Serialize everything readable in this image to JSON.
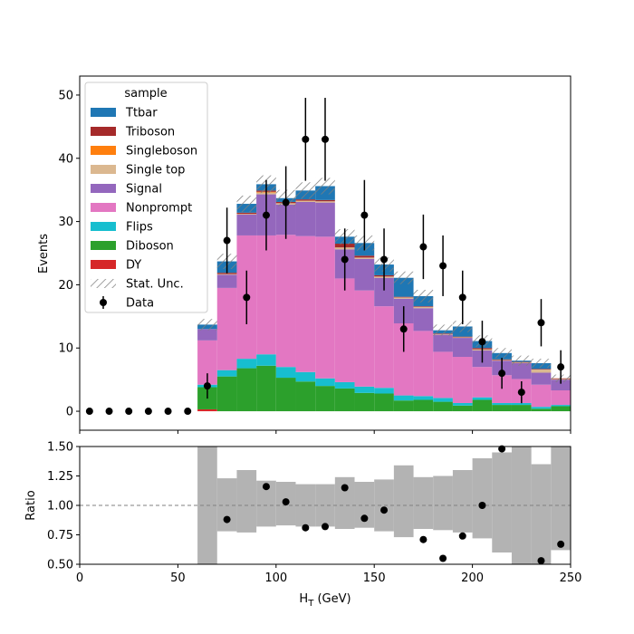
{
  "chart_data": [
    {
      "type": "stacked-histogram",
      "panel": "main",
      "ylabel": "Events",
      "xlim": [
        0,
        250
      ],
      "ylim": [
        -3,
        53
      ],
      "xticks": [
        0,
        50,
        100,
        150,
        200,
        250
      ],
      "yticks": [
        0,
        10,
        20,
        30,
        40,
        50
      ],
      "bin_edges": [
        60,
        70,
        80,
        90,
        100,
        110,
        120,
        130,
        140,
        150,
        160,
        170,
        180,
        190,
        200,
        210,
        220,
        230,
        240,
        250
      ],
      "legend": {
        "title": "sample",
        "position": "upper-left"
      },
      "series": [
        {
          "name": "DY",
          "color": "#d62728",
          "values": [
            0.3,
            0,
            0,
            0,
            0,
            0,
            0,
            0,
            0,
            0,
            0,
            0,
            0,
            0,
            0,
            0,
            0,
            0,
            0
          ]
        },
        {
          "name": "Diboson",
          "color": "#2ca02c",
          "values": [
            3.5,
            5.5,
            6.8,
            7.2,
            5.3,
            4.7,
            4.0,
            3.6,
            2.9,
            2.8,
            1.7,
            1.8,
            1.5,
            0.9,
            1.8,
            1.0,
            1.0,
            0.4,
            0.8
          ]
        },
        {
          "name": "Flips",
          "color": "#17becf",
          "values": [
            0.4,
            1.0,
            1.5,
            1.8,
            1.7,
            1.5,
            1.2,
            1.0,
            1.0,
            0.9,
            0.8,
            0.6,
            0.6,
            0.4,
            0.4,
            0.3,
            0.3,
            0.3,
            0.2
          ]
        },
        {
          "name": "Nonprompt",
          "color": "#e377c2",
          "values": [
            7.0,
            13.0,
            19.5,
            18.8,
            20.9,
            21.5,
            22.4,
            16.4,
            15.2,
            12.9,
            11.4,
            10.3,
            7.3,
            7.3,
            4.8,
            4.4,
            3.8,
            3.5,
            2.3
          ]
        },
        {
          "name": "Signal",
          "color": "#9467bd",
          "values": [
            1.8,
            2.1,
            3.3,
            6.5,
            4.8,
            5.4,
            5.4,
            4.6,
            5.0,
            4.5,
            3.9,
            3.6,
            2.7,
            3.0,
            2.6,
            2.3,
            2.5,
            1.9,
            1.7
          ]
        },
        {
          "name": "Single top",
          "color": "#dbb890",
          "values": [
            0,
            0.1,
            0.1,
            0.3,
            0.2,
            0.2,
            0.2,
            0.3,
            0.2,
            0.2,
            0.2,
            0.2,
            0.1,
            0.1,
            0.2,
            0.1,
            0.1,
            0.5,
            0.1
          ]
        },
        {
          "name": "Singleboson",
          "color": "#ff7f0e",
          "values": [
            0,
            0,
            0,
            0.1,
            0,
            0,
            0,
            0,
            0,
            0,
            0,
            0,
            0,
            0,
            0,
            0,
            0,
            0,
            0
          ]
        },
        {
          "name": "Triboson",
          "color": "#a52a2a",
          "values": [
            0,
            0.2,
            0.2,
            0.2,
            0.2,
            0.2,
            0.2,
            0.6,
            0.3,
            0.2,
            0.1,
            0.1,
            0.1,
            0.1,
            0.2,
            0.1,
            0.1,
            0.1,
            0.1
          ]
        },
        {
          "name": "Ttbar",
          "color": "#1f77b4",
          "values": [
            0.7,
            1.8,
            1.4,
            1.0,
            0.6,
            1.4,
            2.2,
            1.1,
            2.0,
            1.7,
            3.0,
            1.6,
            0.5,
            1.6,
            1.1,
            1.0,
            0.2,
            0.9,
            0.0
          ]
        }
      ],
      "stat_unc": {
        "name": "Stat. Unc.",
        "halfwidth": [
          0.9,
          1.2,
          1.3,
          1.4,
          1.3,
          1.3,
          1.3,
          1.2,
          1.2,
          1.1,
          1.0,
          1.0,
          0.9,
          0.9,
          0.9,
          0.8,
          0.8,
          0.7,
          0.6
        ]
      },
      "data": {
        "name": "Data",
        "x": [
          5,
          15,
          25,
          35,
          45,
          55,
          65,
          75,
          85,
          95,
          105,
          115,
          125,
          135,
          145,
          155,
          165,
          175,
          185,
          195,
          205,
          215,
          225,
          235,
          245
        ],
        "y": [
          0,
          0,
          0,
          0,
          0,
          0,
          4,
          27,
          18,
          31,
          33,
          43,
          43,
          24,
          31,
          24,
          13,
          26,
          23,
          18,
          11,
          6,
          3,
          14,
          7
        ]
      }
    },
    {
      "type": "ratio",
      "panel": "ratio",
      "xlabel": "H_T (GeV)",
      "ylabel": "Ratio",
      "xlim": [
        0,
        250
      ],
      "ylim": [
        0.5,
        1.5
      ],
      "xticks": [
        0,
        50,
        100,
        150,
        200,
        250
      ],
      "yticks": [
        "0.50",
        "0.75",
        "1.00",
        "1.25",
        "1.50"
      ],
      "reference_line": 1.0,
      "unc_band": [
        [
          0.2,
          1.5
        ],
        [
          0.78,
          1.23
        ],
        [
          0.77,
          1.3
        ],
        [
          0.82,
          1.21
        ],
        [
          0.83,
          1.2
        ],
        [
          0.82,
          1.18
        ],
        [
          0.82,
          1.18
        ],
        [
          0.8,
          1.24
        ],
        [
          0.81,
          1.2
        ],
        [
          0.78,
          1.22
        ],
        [
          0.73,
          1.34
        ],
        [
          0.8,
          1.24
        ],
        [
          0.79,
          1.25
        ],
        [
          0.77,
          1.3
        ],
        [
          0.72,
          1.4
        ],
        [
          0.6,
          1.45
        ],
        [
          0.4,
          1.55
        ],
        [
          0.5,
          1.35
        ],
        [
          0.62,
          1.5
        ]
      ],
      "points": {
        "x": [
          75,
          95,
          105,
          115,
          125,
          135,
          145,
          155,
          175,
          185,
          195,
          205,
          215,
          235,
          245
        ],
        "y": [
          0.88,
          1.16,
          1.03,
          0.81,
          0.82,
          1.15,
          0.89,
          0.96,
          0.71,
          0.55,
          0.74,
          1.0,
          1.48,
          0.53,
          0.67
        ]
      }
    }
  ],
  "text": {
    "main_ylabel": "Events",
    "ratio_ylabel": "Ratio",
    "xlabel_main": "H",
    "xlabel_sub": "T",
    "xlabel_unit": " (GeV)",
    "legend_title": "sample"
  }
}
